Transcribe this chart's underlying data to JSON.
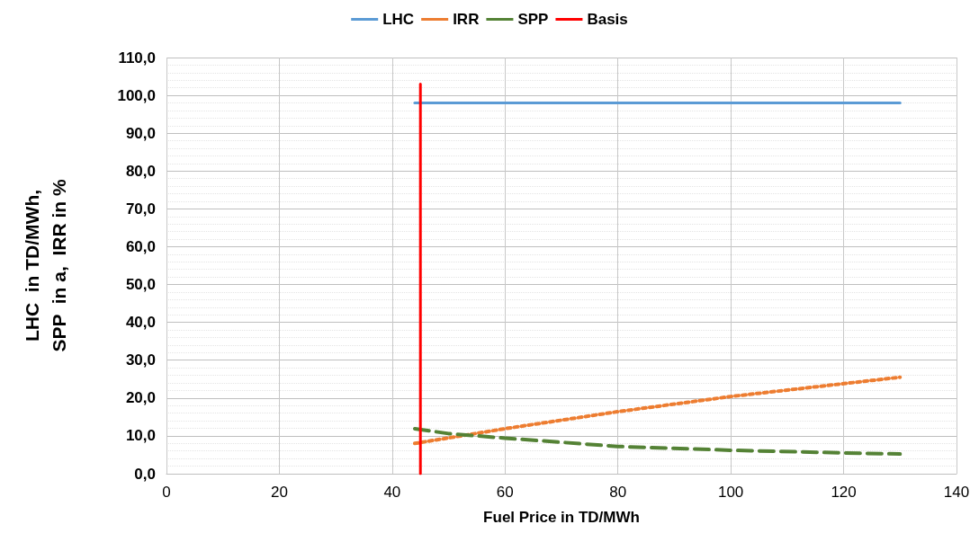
{
  "chart_data": {
    "type": "line",
    "xlabel": "Fuel Price in TD/MWh",
    "ylabel": "LHC  in TD/MWh,\nSPP  in a,  IRR in %",
    "xlim": [
      0,
      140
    ],
    "xticks": [
      0,
      20,
      40,
      60,
      80,
      100,
      120,
      140
    ],
    "ylim": [
      0,
      110
    ],
    "yticks": [
      {
        "value": 0,
        "label": "0,0"
      },
      {
        "value": 10,
        "label": "10,0"
      },
      {
        "value": 20,
        "label": "20,0"
      },
      {
        "value": 30,
        "label": "30,0"
      },
      {
        "value": 40,
        "label": "40,0"
      },
      {
        "value": 50,
        "label": "50,0"
      },
      {
        "value": 60,
        "label": "60,0"
      },
      {
        "value": 70,
        "label": "70,0"
      },
      {
        "value": 80,
        "label": "80,0"
      },
      {
        "value": 90,
        "label": "90,0"
      },
      {
        "value": 100,
        "label": "100,0"
      },
      {
        "value": 110,
        "label": "110,0"
      }
    ],
    "grid": true,
    "legend": "top",
    "marker": "none",
    "series": [
      {
        "name": "LHC",
        "color": "#5b9bd5",
        "line_style": "solid",
        "x": [
          44,
          130
        ],
        "values": [
          98,
          98
        ]
      },
      {
        "name": "IRR",
        "color": "#ed7d31",
        "line_style": "dotted",
        "x": [
          44,
          60,
          80,
          100,
          120,
          130
        ],
        "values": [
          8.0,
          11.9,
          16.4,
          20.4,
          23.8,
          25.5
        ]
      },
      {
        "name": "SPP",
        "color": "#548235",
        "line_style": "dashed",
        "x": [
          44,
          50,
          60,
          80,
          100,
          120,
          130
        ],
        "values": [
          11.9,
          10.6,
          9.4,
          7.2,
          6.2,
          5.5,
          5.2
        ]
      },
      {
        "name": "Basis",
        "color": "#ff0000",
        "line_style": "solid",
        "x": [
          45,
          45
        ],
        "values": [
          0,
          103
        ]
      }
    ]
  }
}
